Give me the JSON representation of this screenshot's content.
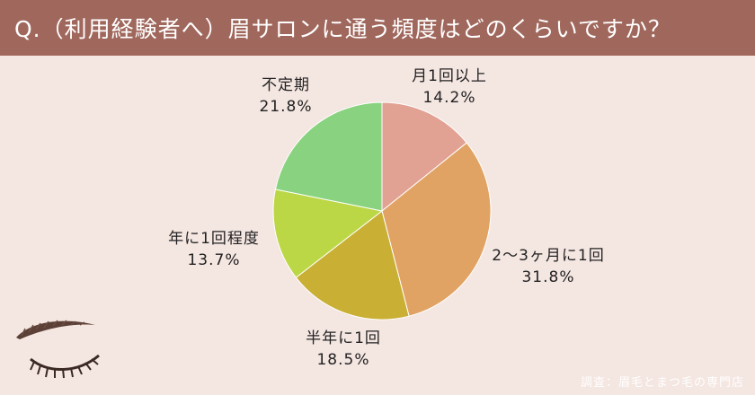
{
  "header": {
    "title": "Q.（利用経験者へ）眉サロンに通う頻度はどのくらいですか？"
  },
  "credit": "調査：眉毛とまつ毛の専門店",
  "chart_data": {
    "type": "pie",
    "title": "Q.（利用経験者へ）眉サロンに通う頻度はどのくらいですか？",
    "start_angle": "12 o'clock",
    "direction": "clockwise",
    "slices": [
      {
        "label": "月1回以上",
        "value": 14.2,
        "display": "14.2%",
        "color": "#e2a293"
      },
      {
        "label": "2〜3ヶ月に1回",
        "value": 31.8,
        "display": "31.8%",
        "color": "#e0a364"
      },
      {
        "label": "半年に1回",
        "value": 18.5,
        "display": "18.5%",
        "color": "#c9af34"
      },
      {
        "label": "年に1回程度",
        "value": 13.7,
        "display": "13.7%",
        "color": "#bcd746"
      },
      {
        "label": "不定期",
        "value": 21.8,
        "display": "21.8%",
        "color": "#89d27f"
      }
    ]
  }
}
